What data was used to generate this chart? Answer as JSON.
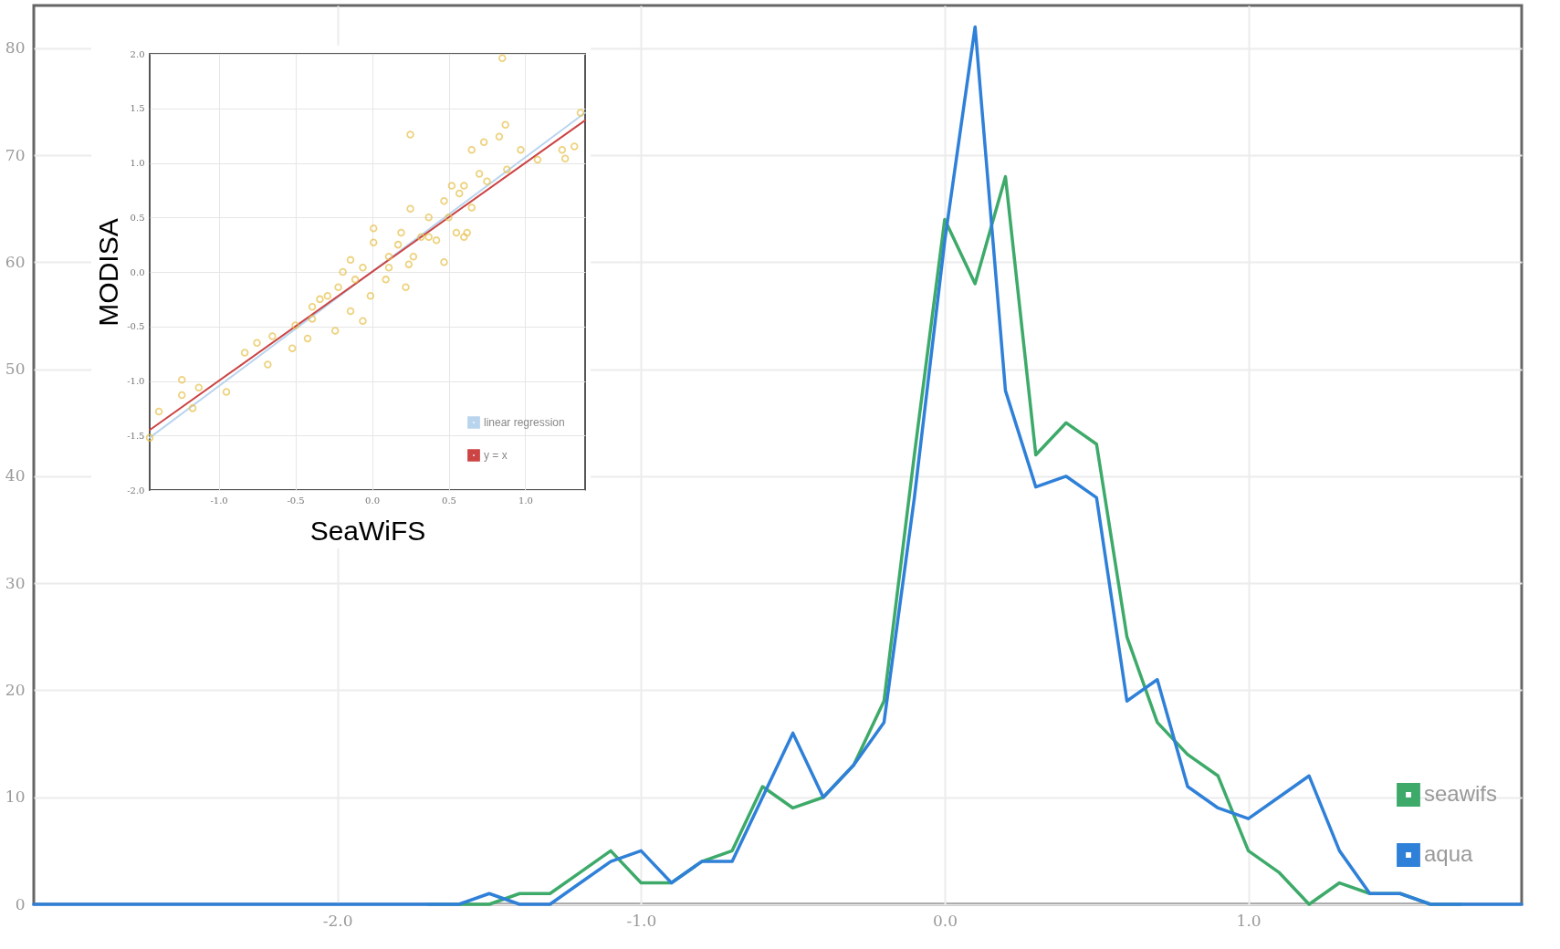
{
  "chart_data": [
    {
      "type": "line",
      "x": [
        -3.0,
        -2.9,
        -2.8,
        -2.7,
        -2.6,
        -2.5,
        -2.4,
        -2.3,
        -2.2,
        -2.1,
        -2.0,
        -1.9,
        -1.8,
        -1.7,
        -1.6,
        -1.5,
        -1.4,
        -1.3,
        -1.2,
        -1.1,
        -1.0,
        -0.9,
        -0.8,
        -0.7,
        -0.6,
        -0.5,
        -0.4,
        -0.3,
        -0.2,
        -0.1,
        0.0,
        0.1,
        0.2,
        0.3,
        0.4,
        0.5,
        0.6,
        0.7,
        0.8,
        0.9,
        1.0,
        1.1,
        1.2,
        1.3,
        1.4,
        1.5,
        1.6,
        1.7,
        1.8,
        1.9
      ],
      "series": [
        {
          "name": "seawifs",
          "color": "#3daa6a",
          "values": [
            null,
            null,
            null,
            null,
            null,
            null,
            null,
            null,
            null,
            null,
            null,
            null,
            null,
            0,
            0,
            0,
            1,
            1,
            3,
            5,
            2,
            2,
            4,
            5,
            11,
            9,
            10,
            13,
            19,
            42,
            64,
            58,
            68,
            42,
            45,
            43,
            25,
            17,
            14,
            12,
            5,
            3,
            0,
            2,
            1,
            1,
            0,
            0,
            null,
            null
          ]
        },
        {
          "name": "aqua",
          "color": "#2f80d8",
          "values": [
            0,
            0,
            0,
            0,
            0,
            0,
            0,
            0,
            0,
            0,
            0,
            0,
            0,
            0,
            0,
            1,
            0,
            0,
            2,
            4,
            5,
            2,
            4,
            4,
            10,
            16,
            10,
            13,
            17,
            38,
            62,
            82,
            48,
            39,
            40,
            38,
            19,
            21,
            11,
            9,
            8,
            10,
            12,
            5,
            1,
            1,
            0,
            0,
            0,
            0
          ]
        }
      ],
      "xlim": [
        -3.0,
        1.9
      ],
      "ylim": [
        0,
        84
      ],
      "xticks": [
        {
          "value": -2,
          "label": "-2.0"
        },
        {
          "value": -1,
          "label": "-1.0"
        },
        {
          "value": 0,
          "label": "0.0"
        },
        {
          "value": 1,
          "label": "1.0"
        }
      ],
      "yticks": [
        0,
        10,
        20,
        30,
        40,
        50,
        60,
        70,
        80
      ],
      "grid": true,
      "legend": "bottom right"
    },
    {
      "type": "scatter",
      "xlabel": "SeaWiFS",
      "ylabel": "MODISA",
      "series": [
        {
          "type": "scatter",
          "color": "#e6c04a",
          "marker": "circle",
          "x": [
            -1.45,
            -1.39,
            -1.24,
            -1.24,
            -1.17,
            -1.13,
            -0.95,
            -0.83,
            -0.75,
            -0.68,
            -0.65,
            -0.52,
            -0.5,
            -0.42,
            -0.39,
            -0.34,
            -0.24,
            -0.19,
            -0.14,
            -0.06,
            -0.11,
            -0.01,
            0.01,
            0.01,
            0.09,
            0.11,
            0.19,
            0.22,
            0.25,
            0.25,
            0.27,
            0.32,
            0.37,
            0.42,
            0.47,
            0.47,
            0.55,
            0.52,
            0.6,
            0.62,
            0.6,
            0.65,
            0.7,
            0.65,
            0.73,
            0.83,
            0.87,
            0.85,
            0.88,
            0.97,
            1.08,
            1.24,
            1.26,
            1.32,
            1.36,
            0.11,
            0.24,
            -0.06,
            -0.22,
            -0.29,
            -0.39,
            0.37,
            0.5,
            0.75,
            0.57,
            0.17,
            -0.14
          ],
          "values": [
            -1.52,
            -1.28,
            -0.99,
            -1.13,
            -1.25,
            -1.06,
            -1.1,
            -0.74,
            -0.65,
            -0.85,
            -0.59,
            -0.7,
            -0.49,
            -0.61,
            -0.43,
            -0.25,
            -0.54,
            0.0,
            -0.36,
            -0.45,
            -0.07,
            -0.22,
            0.4,
            0.27,
            -0.07,
            0.14,
            0.36,
            -0.14,
            1.26,
            0.58,
            0.14,
            0.32,
            0.5,
            0.29,
            0.09,
            0.65,
            0.36,
            0.79,
            0.32,
            0.36,
            0.79,
            0.59,
            0.9,
            1.12,
            1.19,
            1.24,
            1.35,
            1.96,
            0.94,
            1.12,
            1.03,
            1.12,
            1.04,
            1.15,
            1.46,
            0.04,
            0.07,
            0.04,
            -0.14,
            -0.22,
            -0.32,
            0.32,
            0.5,
            0.83,
            0.72,
            0.25,
            0.11
          ]
        },
        {
          "type": "line",
          "name": "linear regression",
          "color": "#b9d5ee",
          "x": [
            -1.45,
            1.39
          ],
          "values": [
            -1.52,
            1.46
          ]
        },
        {
          "type": "line",
          "name": "y = x",
          "color": "#cc4444",
          "x": [
            -1.45,
            1.39
          ],
          "values": [
            -1.45,
            1.39
          ]
        }
      ],
      "xlim": [
        -1.45,
        1.39
      ],
      "ylim": [
        -2,
        2
      ],
      "xticks": [
        {
          "value": -1,
          "label": "-1.0"
        },
        {
          "value": -0.5,
          "label": "-0.5"
        },
        {
          "value": 0,
          "label": "0.0"
        },
        {
          "value": 0.5,
          "label": "0.5"
        },
        {
          "value": 1,
          "label": "1.0"
        }
      ],
      "yticks": [
        {
          "value": -2,
          "label": "-2.0"
        },
        {
          "value": -1.5,
          "label": "-1.5"
        },
        {
          "value": -1,
          "label": "-1.0"
        },
        {
          "value": -0.5,
          "label": "-0.5"
        },
        {
          "value": 0,
          "label": "0.0"
        },
        {
          "value": 0.5,
          "label": "0.5"
        },
        {
          "value": 1,
          "label": "1.0"
        },
        {
          "value": 1.5,
          "label": "1.5"
        },
        {
          "value": 2,
          "label": "2.0"
        }
      ],
      "grid": true,
      "legend": "bottom right"
    }
  ]
}
